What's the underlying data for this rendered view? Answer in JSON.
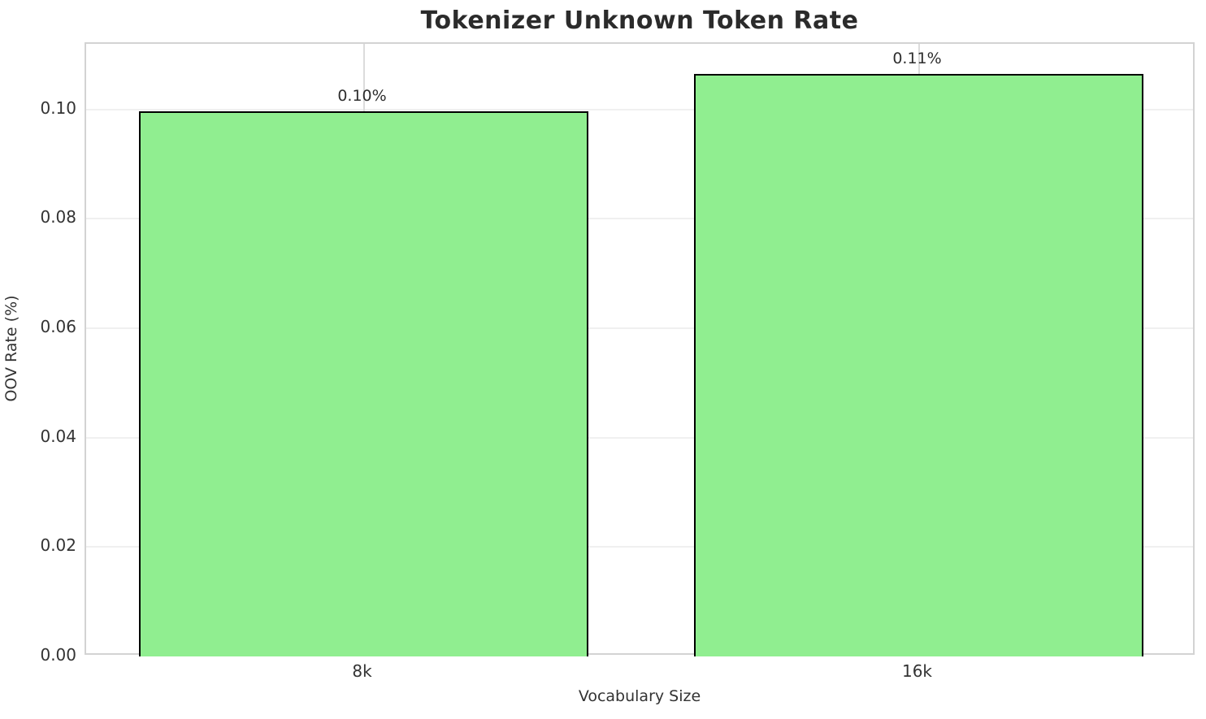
{
  "figure": {
    "title": "Tokenizer Unknown Token Rate"
  },
  "chart_data": {
    "type": "bar",
    "title": "Tokenizer Unknown Token Rate",
    "xlabel": "Vocabulary Size",
    "ylabel": "OOV Rate (%)",
    "categories": [
      "8k",
      "16k"
    ],
    "values": [
      0.0997,
      0.1065
    ],
    "bar_labels": [
      "0.10%",
      "0.11%"
    ],
    "ytick_values": [
      0.0,
      0.02,
      0.04,
      0.06,
      0.08,
      0.1
    ],
    "ytick_labels": [
      "0.00",
      "0.02",
      "0.04",
      "0.06",
      "0.08",
      "0.10"
    ],
    "ylim": [
      0,
      0.112
    ],
    "grid": true,
    "legend": false,
    "bar_color": "#90EE90",
    "bar_edge_color": "#000000"
  },
  "colors": {
    "background": "#ffffff",
    "grid_horizontal": "#f0f0f0",
    "grid_vertical": "#dcdcdc",
    "spine": "#d3d3d3",
    "title_text": "#2b2b2b",
    "tick_text": "#333333"
  }
}
